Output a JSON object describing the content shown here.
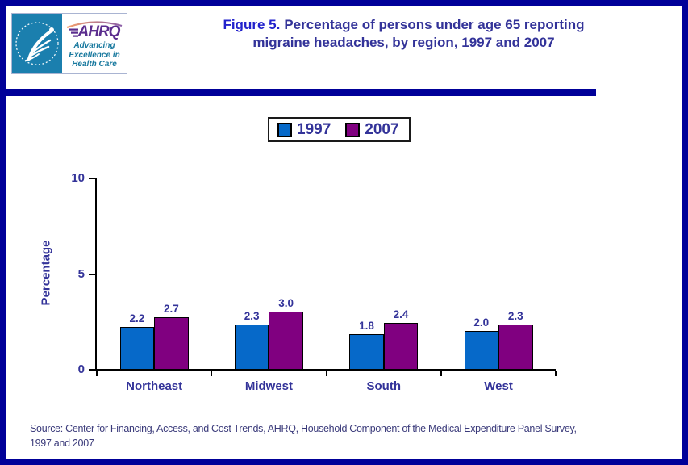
{
  "window": {
    "frame_color": "#000099",
    "background": "#ffffff"
  },
  "header": {
    "logo": {
      "org": "AHRQ",
      "tagline_lines": [
        "Advancing",
        "Excellence in",
        "Health Care"
      ],
      "hhs_panel_color": "#1b7fae",
      "ahrq_purple": "#5b2d8e"
    },
    "title": {
      "figure_label": "Figure 5.",
      "text": "Percentage of persons under age 65 reporting migraine headaches, by region, 1997 and 2007"
    }
  },
  "legend": {
    "items": [
      {
        "label": "1997",
        "color": "#0669c9"
      },
      {
        "label": "2007",
        "color": "#800080"
      }
    ]
  },
  "chart_data": {
    "type": "bar",
    "categories": [
      "Northeast",
      "Midwest",
      "South",
      "West"
    ],
    "series": [
      {
        "name": "1997",
        "color": "#0669c9",
        "values": [
          2.2,
          2.3,
          1.8,
          2.0
        ]
      },
      {
        "name": "2007",
        "color": "#800080",
        "values": [
          2.7,
          3.0,
          2.4,
          2.3
        ]
      }
    ],
    "ylabel": "Percentage",
    "xlabel": "",
    "yticks": [
      0,
      5,
      10
    ],
    "ylim": [
      0,
      10
    ],
    "grid": false,
    "value_labels": true,
    "legend_position": "top-center"
  },
  "source": {
    "line1": "Source: Center for Financing, Access, and Cost Trends, AHRQ, Household Component of the Medical Expenditure Panel Survey,",
    "line2": "1997 and 2007"
  }
}
